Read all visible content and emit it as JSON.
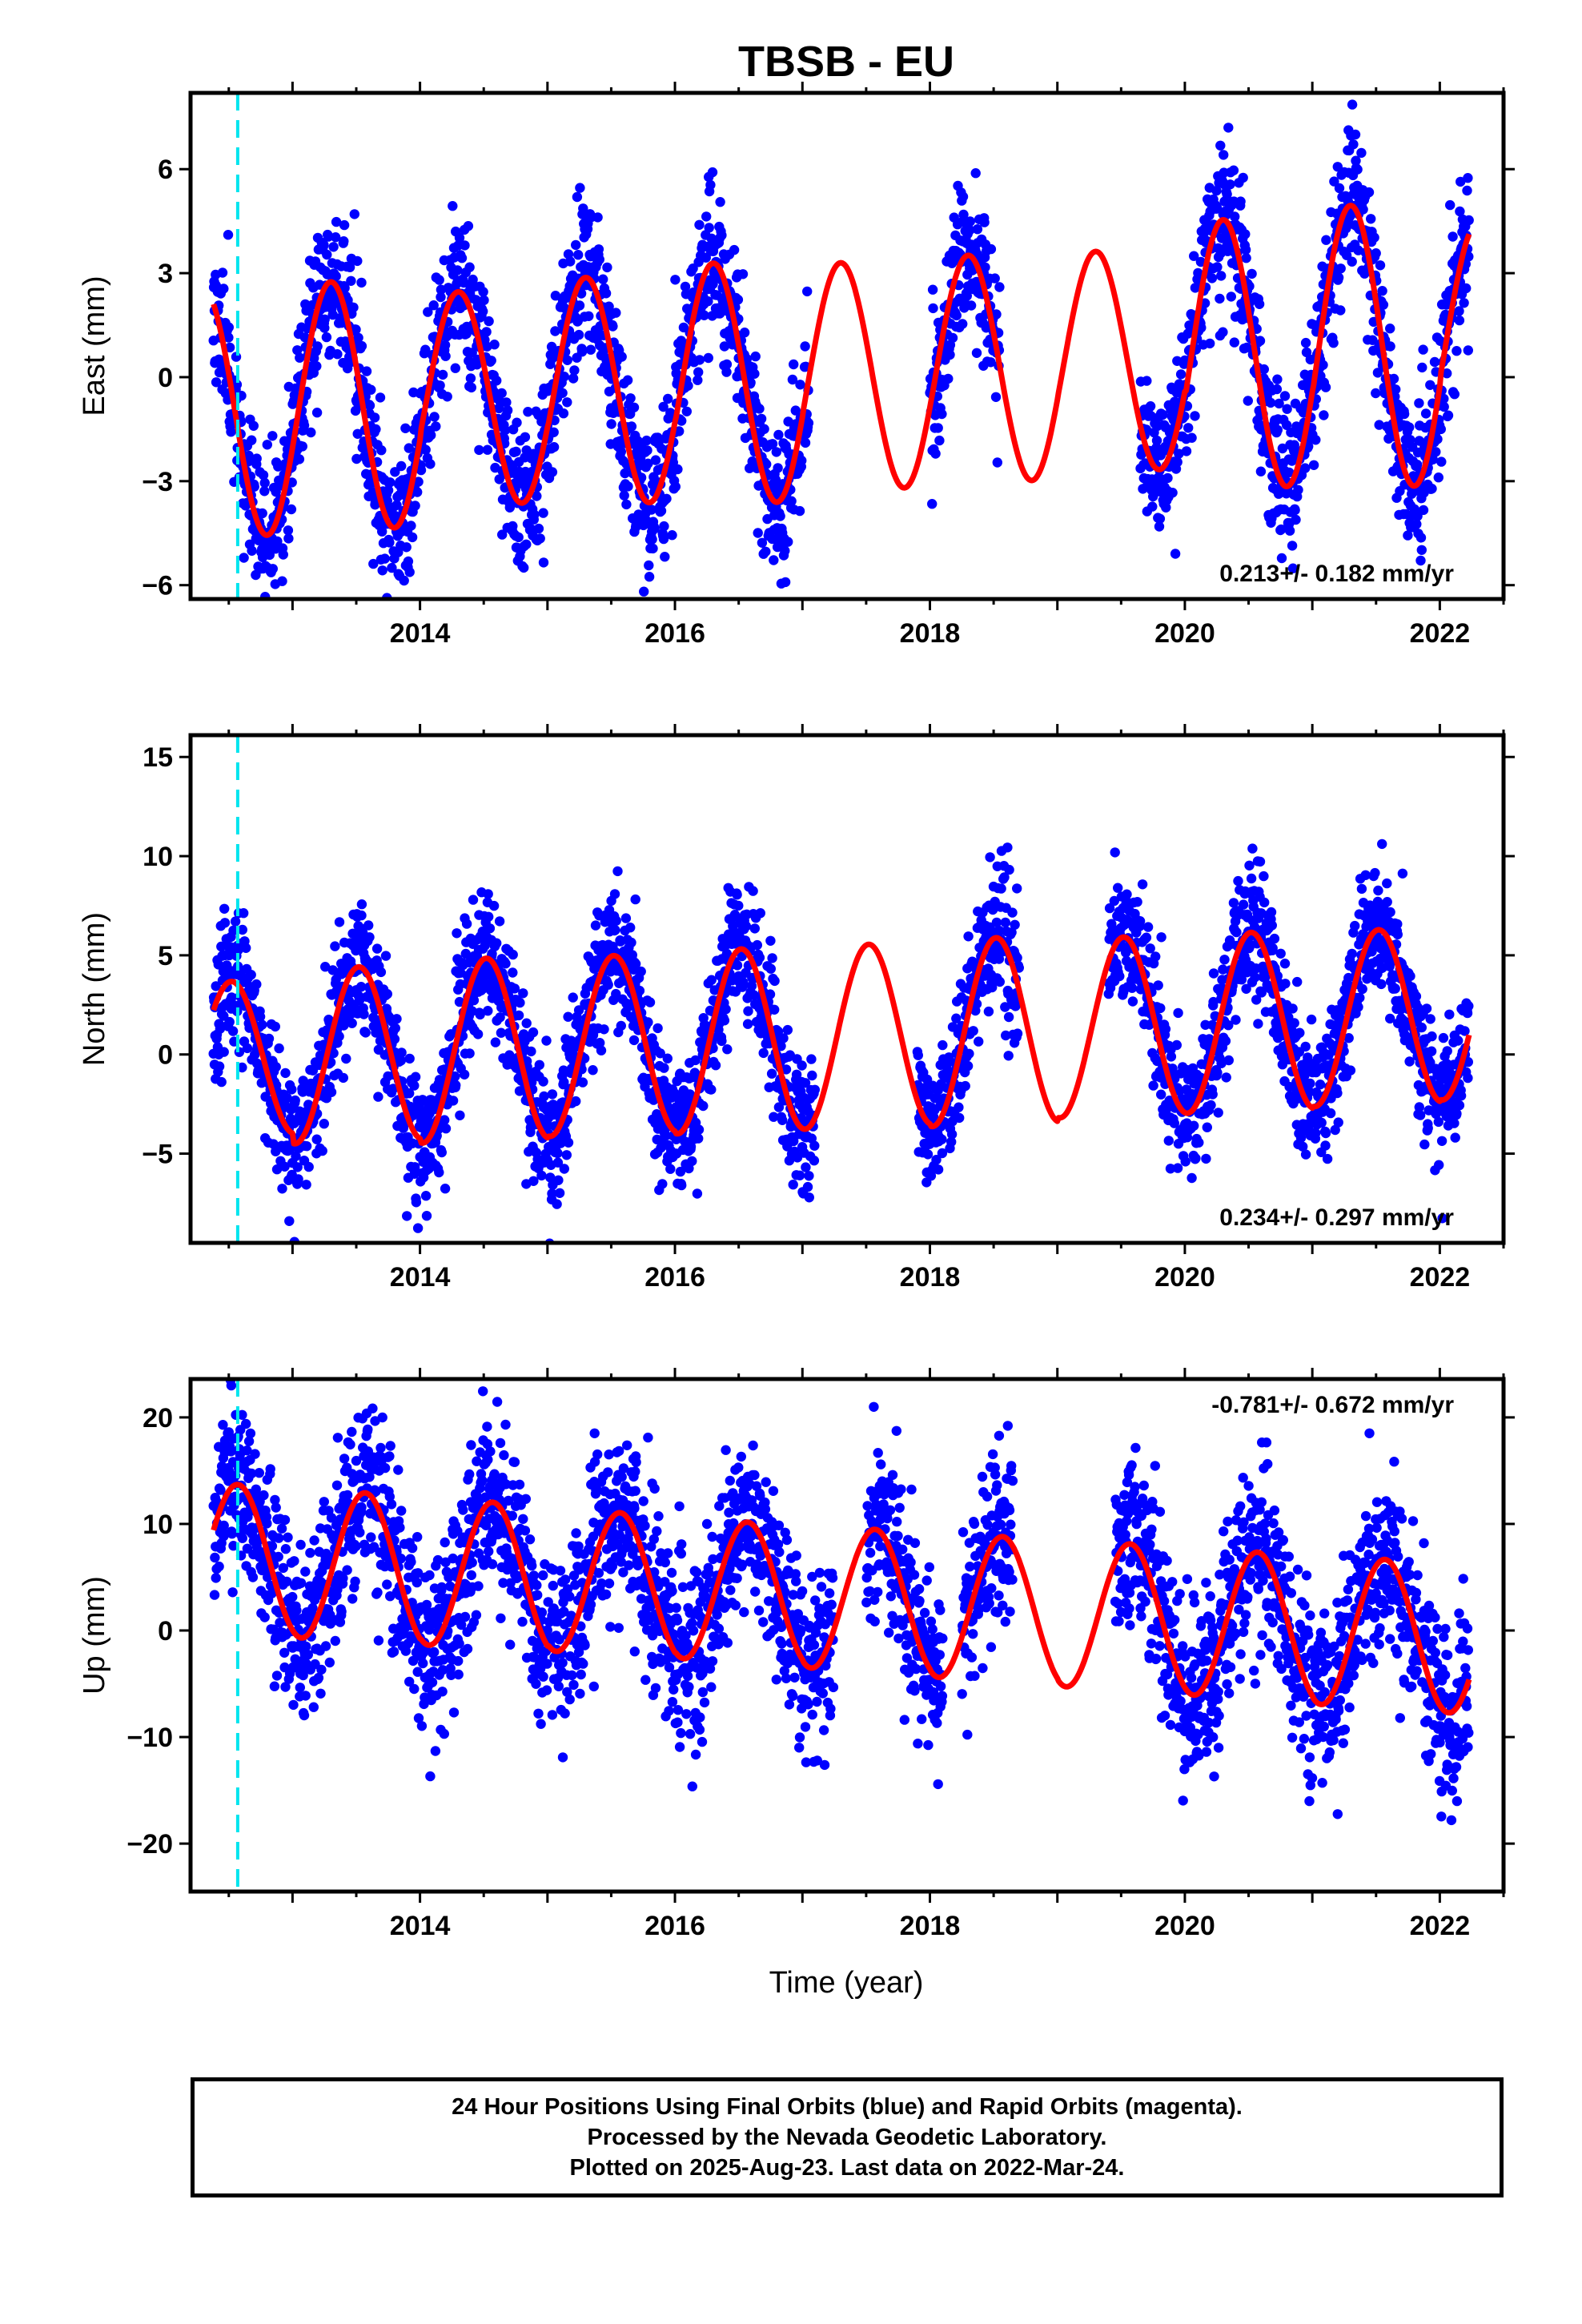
{
  "title": "TBSB - EU",
  "colors": {
    "data_points": "#0000ff",
    "model_fit": "#ff0000",
    "marker_line": "#00e5ee",
    "axes": "#000000"
  },
  "footer": {
    "line1": "24 Hour Positions Using Final Orbits (blue) and Rapid Orbits (magenta).",
    "line2": "Processed by the Nevada Geodetic Laboratory.",
    "line3": "Plotted on 2025-Aug-23. Last data on 2022-Mar-24."
  },
  "xlabel": "Time (year)",
  "chart_data": [
    {
      "type": "scatter",
      "component": "east",
      "ylabel": "East (mm)",
      "rate_text": "0.213+/- 0.182 mm/yr",
      "xlim": [
        2012.2,
        2022.5
      ],
      "ylim": [
        -6.4,
        8.2
      ],
      "xticks": [
        2014,
        2016,
        2018,
        2020,
        2022
      ],
      "yticks": [
        -6,
        -3,
        0,
        3,
        6
      ],
      "ytick_labels": [
        "−6",
        "−3",
        "0",
        "3",
        "6"
      ],
      "marker_line_x": 2012.57,
      "grid": false,
      "model": {
        "offset": 0.0,
        "trend": 0.213,
        "t0": 2017.3,
        "amplitude": 3.3,
        "peak_phase": 0.3,
        "start": 2012.38,
        "end": 2022.23
      },
      "scatter_spread": 1.1,
      "peak_amp_by_year": {
        "2012": 3.6,
        "2013": 3.6,
        "2014": 3.1,
        "2015": 3.3,
        "2016": 3.5,
        "2017": 3.3,
        "2018": 3.3,
        "2019": 3.2,
        "2020": 3.9,
        "2021": 4.1,
        "2022": 3.4
      },
      "gaps": [
        [
          2017.05,
          2018.0
        ],
        [
          2018.55,
          2019.65
        ]
      ],
      "seed": 11
    },
    {
      "type": "scatter",
      "component": "north",
      "ylabel": "North (mm)",
      "rate_text": "0.234+/- 0.297 mm/yr",
      "xlim": [
        2012.2,
        2022.5
      ],
      "ylim": [
        -9.5,
        16.1
      ],
      "xticks": [
        2014,
        2016,
        2018,
        2020,
        2022
      ],
      "yticks": [
        -5,
        0,
        5,
        10,
        15
      ],
      "ytick_labels": [
        "−5",
        "0",
        "5",
        "10",
        "15"
      ],
      "marker_line_x": 2012.57,
      "grid": false,
      "model": {
        "offset": 0.9,
        "trend": 0.234,
        "t0": 2017.3,
        "amplitude": 4.4,
        "peak_phase": 0.52,
        "start": 2012.38,
        "end": 2022.23
      },
      "scatter_spread": 1.7,
      "peak_amp_by_year": {
        "2012": 3.9,
        "2013": 4.4,
        "2014": 4.6,
        "2015": 4.5,
        "2016": 4.6,
        "2017": 4.6,
        "2018": 4.7,
        "2019": 4.5,
        "2020": 4.5,
        "2021": 4.4,
        "2022": 4.3
      },
      "gaps": [
        [
          2017.1,
          2017.9
        ],
        [
          2018.7,
          2019.4
        ]
      ],
      "seed": 23
    },
    {
      "type": "scatter",
      "component": "up",
      "ylabel": "Up (mm)",
      "rate_text": "-0.781+/- 0.672 mm/yr",
      "xlim": [
        2012.2,
        2022.5
      ],
      "ylim": [
        -24.5,
        23.6
      ],
      "xticks": [
        2014,
        2016,
        2018,
        2020,
        2022
      ],
      "yticks": [
        -20,
        -10,
        0,
        10,
        20
      ],
      "ytick_labels": [
        "−20",
        "−10",
        "0",
        "10",
        "20"
      ],
      "marker_line_x": 2012.57,
      "grid": false,
      "model": {
        "offset": 3.0,
        "trend": -0.781,
        "t0": 2017.3,
        "amplitude": 6.5,
        "peak_phase": 0.57,
        "start": 2012.38,
        "end": 2022.23
      },
      "scatter_spread": 4.2,
      "peak_amp_by_year": {
        "2012": 7.0,
        "2013": 7.0,
        "2014": 6.9,
        "2015": 6.7,
        "2016": 6.6,
        "2017": 6.7,
        "2018": 6.8,
        "2019": 6.9,
        "2020": 6.9,
        "2021": 7.0,
        "2022": 7.0
      },
      "gaps": [
        [
          2017.25,
          2017.5
        ],
        [
          2018.1,
          2018.25
        ],
        [
          2018.65,
          2019.45
        ]
      ],
      "seed": 37
    }
  ]
}
